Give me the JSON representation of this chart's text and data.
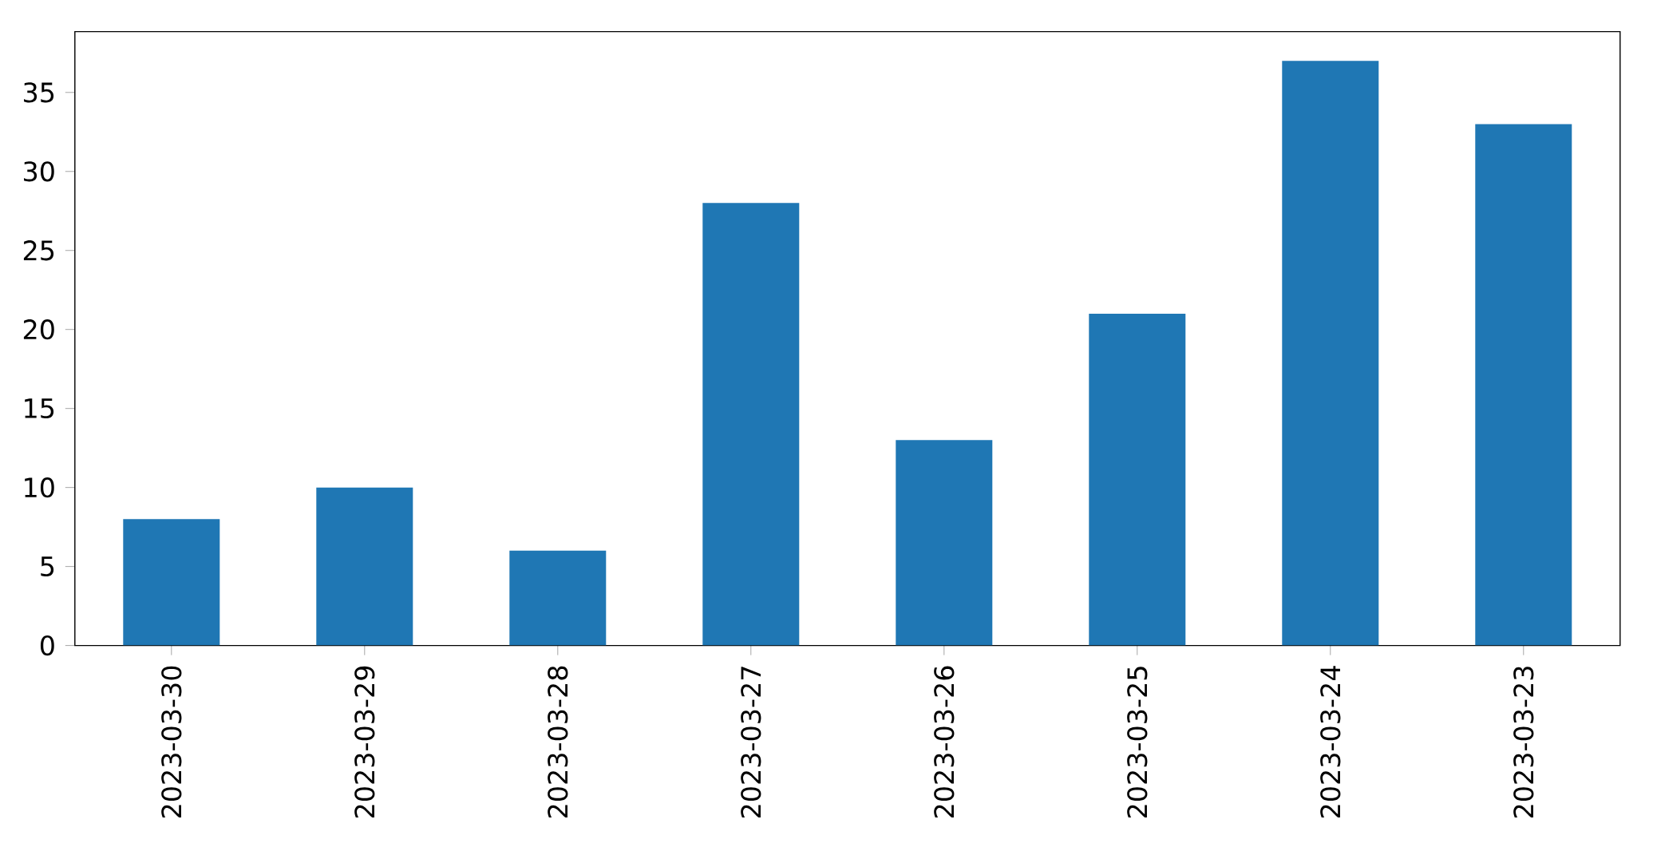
{
  "chart_data": {
    "type": "bar",
    "categories": [
      "2023-03-30",
      "2023-03-29",
      "2023-03-28",
      "2023-03-27",
      "2023-03-26",
      "2023-03-25",
      "2023-03-24",
      "2023-03-23"
    ],
    "values": [
      8,
      10,
      6,
      28,
      13,
      21,
      37,
      33
    ],
    "color": "#1f77b4",
    "ylim": [
      0,
      38.85
    ],
    "yticks": [
      0,
      5,
      10,
      15,
      20,
      25,
      30,
      35
    ],
    "grid": false
  }
}
